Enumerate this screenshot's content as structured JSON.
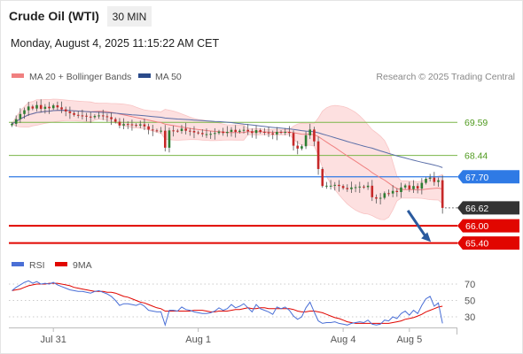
{
  "header": {
    "title": "Crude Oil (WTI)",
    "timeframe": "30 MIN",
    "timestamp": "Monday, August 4, 2025 11:15:22 AM CET"
  },
  "credit": "Research © 2025 Trading Central",
  "colors": {
    "candle_up": "#2e7d32",
    "candle_down": "#c62828",
    "bollinger_fill": "#fde0e0",
    "ma20": "#f08080",
    "ma50": "#5b6fa8",
    "green_level": "#7ab648",
    "blue_level": "#2f7ae5",
    "red_level": "#e10600",
    "current": "#333333",
    "rsi": "#4a6fd6",
    "rsi_ma": "#e10600",
    "arrow": "#2a5a9e"
  },
  "chart_data": [
    {
      "type": "candlestick",
      "legend": [
        {
          "name": "MA 20 + Bollinger Bands",
          "color": "#f08080"
        },
        {
          "name": "MA 50",
          "color": "#2a4a8a"
        }
      ],
      "x_ticks": [
        {
          "label": "Jul 31",
          "index": 10
        },
        {
          "label": "Aug 1",
          "index": 45
        },
        {
          "label": "Aug 4",
          "index": 80
        },
        {
          "label": "Aug 5",
          "index": 96
        }
      ],
      "ylim": [
        65.05,
        70.55
      ],
      "levels": [
        {
          "value": 69.59,
          "label": "69.59",
          "style": "green"
        },
        {
          "value": 68.44,
          "label": "68.44",
          "style": "green"
        },
        {
          "value": 67.7,
          "label": "67.70",
          "style": "blue"
        },
        {
          "value": 66.62,
          "label": "66.62",
          "style": "current"
        },
        {
          "value": 66.0,
          "label": "66.00",
          "style": "red"
        },
        {
          "value": 65.4,
          "label": "65.40",
          "style": "red"
        }
      ],
      "projection": {
        "from": [
          95,
          66.62
        ],
        "to": [
          101,
          65.47
        ]
      },
      "close": [
        69.54,
        69.7,
        69.88,
        70.01,
        70.14,
        70.07,
        70.19,
        70.06,
        70.13,
        70.08,
        70.18,
        70.11,
        70.04,
        69.97,
        69.91,
        69.85,
        69.83,
        69.82,
        69.79,
        69.77,
        69.81,
        69.83,
        69.8,
        69.77,
        69.7,
        69.61,
        69.48,
        69.53,
        69.52,
        69.5,
        69.48,
        69.52,
        69.45,
        69.34,
        69.31,
        69.3,
        69.3,
        68.71,
        69.31,
        69.3,
        69.29,
        69.37,
        69.3,
        69.29,
        69.24,
        69.22,
        69.18,
        69.18,
        69.19,
        69.22,
        69.27,
        69.22,
        69.26,
        69.33,
        69.26,
        69.3,
        69.33,
        69.28,
        69.22,
        69.32,
        69.26,
        69.24,
        69.21,
        69.17,
        69.26,
        69.24,
        69.26,
        69.22,
        68.78,
        68.68,
        68.76,
        69.14,
        69.34,
        68.93,
        67.97,
        67.38,
        67.39,
        67.39,
        67.42,
        67.38,
        67.31,
        67.27,
        67.33,
        67.34,
        67.36,
        67.34,
        67.39,
        66.99,
        66.94,
        66.97,
        67.13,
        67.12,
        67.21,
        67.17,
        67.33,
        67.4,
        67.27,
        67.38,
        67.29,
        67.49,
        67.63,
        67.67,
        67.52,
        67.58,
        66.62
      ],
      "rsi": {
        "levels": [
          70,
          50,
          30
        ],
        "series": [
          {
            "name": "RSI",
            "color": "#4a6fd6"
          },
          {
            "name": "9MA",
            "color": "#e10600"
          }
        ],
        "rsi": [
          62,
          66,
          69,
          72,
          74,
          71,
          73,
          70,
          71,
          70,
          72,
          69,
          67,
          65,
          63,
          62,
          61,
          61,
          60,
          59,
          61,
          62,
          60,
          58,
          55,
          50,
          44,
          46,
          46,
          45,
          44,
          46,
          43,
          38,
          37,
          36,
          36,
          20,
          38,
          38,
          37,
          42,
          39,
          38,
          36,
          35,
          34,
          34,
          35,
          37,
          41,
          38,
          40,
          45,
          41,
          43,
          46,
          41,
          36,
          45,
          40,
          38,
          36,
          33,
          42,
          40,
          42,
          38,
          31,
          27,
          30,
          41,
          48,
          36,
          25,
          22,
          23,
          23,
          24,
          22,
          21,
          20,
          22,
          23,
          24,
          23,
          26,
          21,
          20,
          21,
          26,
          25,
          30,
          28,
          34,
          37,
          32,
          38,
          34,
          44,
          52,
          55,
          43,
          47,
          22
        ],
        "ma": [
          62,
          63,
          64,
          66,
          68,
          69,
          70,
          70,
          70,
          71,
          71,
          71,
          70,
          69,
          68,
          66,
          65,
          64,
          63,
          62,
          61,
          61,
          61,
          60,
          60,
          59,
          57,
          55,
          54,
          52,
          50,
          48,
          47,
          45,
          43,
          41,
          40,
          37,
          37,
          37,
          37,
          37,
          37,
          37,
          38,
          38,
          38,
          37,
          36,
          36,
          37,
          37,
          37,
          38,
          39,
          39,
          40,
          41,
          40,
          40,
          41,
          41,
          40,
          40,
          40,
          40,
          40,
          40,
          39,
          37,
          36,
          36,
          37,
          37,
          36,
          35,
          33,
          31,
          29,
          28,
          26,
          24,
          23,
          22,
          22,
          22,
          22,
          22,
          22,
          22,
          22,
          22,
          23,
          24,
          25,
          27,
          28,
          29,
          31,
          33,
          36,
          38,
          40,
          42,
          43
        ]
      }
    }
  ]
}
